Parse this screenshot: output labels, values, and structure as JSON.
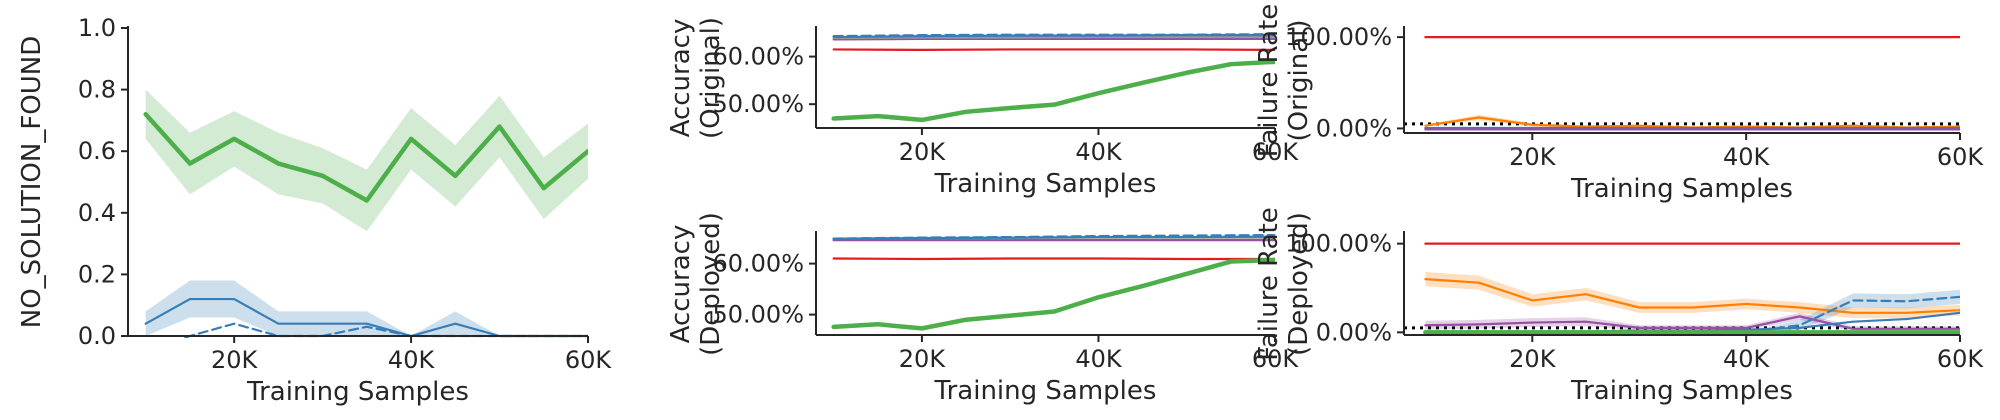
{
  "colors": {
    "green": "#4daf4a",
    "blue": "#377eb8",
    "red": "#e41a1c",
    "purple": "#984ea3",
    "orange": "#ff7f00",
    "gray": "#999999",
    "black": "#000000"
  },
  "chart_data": [
    {
      "id": "no-solution",
      "type": "line",
      "xlabel": "Training Samples",
      "ylabel": "NO_SOLUTION_FOUND",
      "xlim": [
        8000,
        60000
      ],
      "ylim": [
        0,
        1
      ],
      "xticks": [
        20000,
        40000,
        60000
      ],
      "xtick_labels": [
        "20K",
        "40K",
        "60K"
      ],
      "yticks": [
        0,
        0.2,
        0.4,
        0.6,
        0.8,
        1.0
      ],
      "ytick_labels": [
        "0.0",
        "0.2",
        "0.4",
        "0.6",
        "0.8",
        "1.0"
      ],
      "series": [
        {
          "color": "#4daf4a",
          "style": "solid",
          "width": "thick",
          "x": [
            10000,
            15000,
            20000,
            25000,
            30000,
            35000,
            40000,
            45000,
            50000,
            55000,
            60000
          ],
          "y": [
            0.72,
            0.56,
            0.64,
            0.56,
            0.52,
            0.44,
            0.64,
            0.52,
            0.68,
            0.48,
            0.6
          ],
          "band": [
            0.08,
            0.1,
            0.09,
            0.1,
            0.09,
            0.1,
            0.1,
            0.1,
            0.1,
            0.1,
            0.09
          ]
        },
        {
          "color": "#377eb8",
          "style": "solid",
          "width": "thin",
          "x": [
            10000,
            15000,
            20000,
            25000,
            30000,
            35000,
            40000,
            45000,
            50000,
            55000,
            60000
          ],
          "y": [
            0.04,
            0.12,
            0.12,
            0.04,
            0.04,
            0.04,
            0.0,
            0.04,
            0.0,
            0.0,
            0.0
          ],
          "band": [
            0.04,
            0.06,
            0.06,
            0.04,
            0.04,
            0.04,
            0.0,
            0.04,
            0.0,
            0.0,
            0.0
          ]
        },
        {
          "color": "#377eb8",
          "style": "dashed",
          "width": "thin",
          "x": [
            10000,
            15000,
            20000,
            25000,
            30000,
            35000,
            40000,
            45000,
            50000,
            55000,
            60000
          ],
          "y": [
            -0.05,
            0.0,
            0.04,
            0.0,
            0.0,
            0.03,
            0.0,
            0.0,
            0.0,
            0.0,
            0.0
          ]
        }
      ]
    },
    {
      "id": "accuracy-original",
      "type": "line",
      "xlabel": "Training Samples",
      "ylabel": [
        "Accuracy",
        "(Original)"
      ],
      "xlim": [
        8000,
        60000
      ],
      "ylim": [
        45,
        66
      ],
      "xticks": [
        20000,
        40000,
        60000
      ],
      "xtick_labels": [
        "20K",
        "40K",
        "60K"
      ],
      "yticks": [
        50,
        60
      ],
      "ytick_labels": [
        "50.00%",
        "60.00%"
      ],
      "series": [
        {
          "color": "#4daf4a",
          "style": "solid",
          "width": "thick",
          "x": [
            10000,
            15000,
            20000,
            25000,
            30000,
            35000,
            40000,
            45000,
            50000,
            55000,
            60000
          ],
          "y": [
            47.0,
            47.5,
            46.7,
            48.4,
            49.2,
            49.9,
            52.3,
            54.5,
            56.6,
            58.4,
            58.9
          ]
        },
        {
          "color": "#e41a1c",
          "style": "solid",
          "width": "thin",
          "x": [
            10000,
            20000,
            30000,
            40000,
            50000,
            60000
          ],
          "y": [
            61.5,
            61.4,
            61.5,
            61.5,
            61.5,
            61.4
          ]
        },
        {
          "color": "#984ea3",
          "style": "solid",
          "width": "thin",
          "x": [
            10000,
            20000,
            30000,
            40000,
            50000,
            60000
          ],
          "y": [
            63.6,
            63.7,
            63.7,
            63.7,
            63.7,
            63.7
          ]
        },
        {
          "color": "#999999",
          "style": "solid",
          "width": "thin",
          "x": [
            10000,
            20000,
            30000,
            40000,
            50000,
            60000
          ],
          "y": [
            63.9,
            64.0,
            64.0,
            64.1,
            64.1,
            64.1
          ]
        },
        {
          "color": "#377eb8",
          "style": "solid",
          "width": "thin",
          "x": [
            10000,
            20000,
            30000,
            40000,
            50000,
            60000
          ],
          "y": [
            64.1,
            64.3,
            64.4,
            64.4,
            64.5,
            64.5
          ]
        },
        {
          "color": "#377eb8",
          "style": "dashed",
          "width": "thin",
          "x": [
            10000,
            20000,
            30000,
            40000,
            50000,
            60000
          ],
          "y": [
            64.3,
            64.5,
            64.6,
            64.6,
            64.6,
            64.7
          ]
        }
      ]
    },
    {
      "id": "failure-original",
      "type": "line",
      "xlabel": "Training Samples",
      "ylabel": [
        "Failure Rate",
        "(Original)"
      ],
      "xlim": [
        8000,
        60000
      ],
      "ylim": [
        -5,
        110
      ],
      "xticks": [
        20000,
        40000,
        60000
      ],
      "xtick_labels": [
        "20K",
        "40K",
        "60K"
      ],
      "yticks": [
        0,
        100
      ],
      "ytick_labels": [
        "0.00%",
        "100.00%"
      ],
      "hline": {
        "y": 5,
        "style": "dotted",
        "color": "#000000"
      },
      "series": [
        {
          "color": "#e41a1c",
          "style": "solid",
          "width": "thin",
          "x": [
            10000,
            60000
          ],
          "y": [
            100,
            100
          ]
        },
        {
          "color": "#ff7f00",
          "style": "solid",
          "width": "thin",
          "x": [
            10000,
            15000,
            20000,
            25000,
            30000,
            35000,
            40000,
            45000,
            50000,
            55000,
            60000
          ],
          "y": [
            3,
            12,
            4,
            2,
            3,
            1,
            2,
            1,
            3,
            1,
            2
          ],
          "band": [
            1,
            3,
            2,
            1,
            1,
            1,
            1,
            1,
            1,
            1,
            1
          ]
        },
        {
          "color": "#377eb8",
          "style": "solid",
          "width": "thin",
          "x": [
            10000,
            60000
          ],
          "y": [
            0.5,
            0.5
          ]
        },
        {
          "color": "#984ea3",
          "style": "solid",
          "width": "thin",
          "x": [
            10000,
            60000
          ],
          "y": [
            -1,
            -1
          ]
        }
      ]
    },
    {
      "id": "accuracy-deployed",
      "type": "line",
      "xlabel": "Training Samples",
      "ylabel": [
        "Accuracy",
        "(Deployed)"
      ],
      "xlim": [
        8000,
        60000
      ],
      "ylim": [
        46,
        66
      ],
      "xticks": [
        20000,
        40000,
        60000
      ],
      "xtick_labels": [
        "20K",
        "40K",
        "60K"
      ],
      "yticks": [
        50,
        60
      ],
      "ytick_labels": [
        "50.00%",
        "60.00%"
      ],
      "series": [
        {
          "color": "#4daf4a",
          "style": "solid",
          "width": "thick",
          "x": [
            10000,
            15000,
            20000,
            25000,
            30000,
            35000,
            40000,
            45000,
            50000,
            55000,
            60000
          ],
          "y": [
            47.6,
            48.1,
            47.3,
            49.0,
            49.8,
            50.6,
            53.4,
            55.6,
            58.0,
            60.4,
            60.7
          ]
        },
        {
          "color": "#e41a1c",
          "style": "solid",
          "width": "thin",
          "x": [
            10000,
            20000,
            30000,
            40000,
            50000,
            60000
          ],
          "y": [
            61.0,
            60.9,
            61.0,
            61.0,
            60.9,
            60.9
          ]
        },
        {
          "color": "#984ea3",
          "style": "solid",
          "width": "thin",
          "x": [
            10000,
            20000,
            30000,
            40000,
            50000,
            60000
          ],
          "y": [
            64.6,
            64.6,
            64.6,
            64.6,
            64.6,
            64.6
          ]
        },
        {
          "color": "#999999",
          "style": "solid",
          "width": "thin",
          "x": [
            10000,
            20000,
            30000,
            40000,
            50000,
            60000
          ],
          "y": [
            64.9,
            65.0,
            65.0,
            65.1,
            65.1,
            65.1
          ]
        },
        {
          "color": "#377eb8",
          "style": "solid",
          "width": "thin",
          "x": [
            10000,
            20000,
            30000,
            40000,
            50000,
            60000
          ],
          "y": [
            64.8,
            65.0,
            65.1,
            65.2,
            65.2,
            65.3
          ]
        },
        {
          "color": "#377eb8",
          "style": "dashed",
          "width": "thin",
          "x": [
            10000,
            20000,
            30000,
            40000,
            50000,
            60000
          ],
          "y": [
            64.9,
            65.1,
            65.2,
            65.4,
            65.5,
            65.6
          ]
        }
      ]
    },
    {
      "id": "failure-deployed",
      "type": "line",
      "xlabel": "Training Samples",
      "ylabel": [
        "Failure Rate",
        "(Deployed)"
      ],
      "xlim": [
        8000,
        60000
      ],
      "ylim": [
        -3,
        112
      ],
      "xticks": [
        20000,
        40000,
        60000
      ],
      "xtick_labels": [
        "20K",
        "40K",
        "60K"
      ],
      "yticks": [
        0,
        100
      ],
      "ytick_labels": [
        "0.00%",
        "100.00%"
      ],
      "hline": {
        "y": 5,
        "style": "dotted",
        "color": "#000000"
      },
      "series": [
        {
          "color": "#e41a1c",
          "style": "solid",
          "width": "thin",
          "x": [
            10000,
            60000
          ],
          "y": [
            100,
            100
          ]
        },
        {
          "color": "#ff7f00",
          "style": "solid",
          "width": "thin",
          "x": [
            10000,
            15000,
            20000,
            25000,
            30000,
            35000,
            40000,
            45000,
            50000,
            55000,
            60000
          ],
          "y": [
            60,
            56,
            36,
            43,
            28,
            28,
            32,
            28,
            22,
            22,
            25
          ],
          "band": [
            8,
            8,
            7,
            7,
            6,
            6,
            6,
            6,
            6,
            6,
            6
          ]
        },
        {
          "color": "#984ea3",
          "style": "solid",
          "width": "thin",
          "x": [
            10000,
            15000,
            20000,
            25000,
            30000,
            35000,
            40000,
            45000,
            50000,
            55000,
            60000
          ],
          "y": [
            8,
            9,
            11,
            12,
            5,
            5,
            5,
            18,
            4,
            4,
            4
          ],
          "band": [
            5,
            5,
            5,
            5,
            3,
            3,
            3,
            4,
            3,
            3,
            3
          ]
        },
        {
          "color": "#377eb8",
          "style": "dashed",
          "width": "thin",
          "x": [
            10000,
            15000,
            20000,
            25000,
            30000,
            35000,
            40000,
            45000,
            50000,
            55000,
            60000
          ],
          "y": [
            0,
            0,
            0,
            0,
            0,
            0,
            0,
            8,
            36,
            35,
            40
          ],
          "band": [
            0,
            0,
            0,
            0,
            0,
            0,
            0,
            6,
            8,
            8,
            8
          ]
        },
        {
          "color": "#377eb8",
          "style": "solid",
          "width": "thin",
          "x": [
            10000,
            15000,
            20000,
            25000,
            30000,
            35000,
            40000,
            45000,
            50000,
            55000,
            60000
          ],
          "y": [
            1,
            1,
            1,
            1,
            2,
            2,
            3,
            5,
            12,
            15,
            22
          ]
        },
        {
          "color": "#4daf4a",
          "style": "solid",
          "width": "thick",
          "x": [
            10000,
            60000
          ],
          "y": [
            0,
            0
          ]
        }
      ]
    }
  ]
}
